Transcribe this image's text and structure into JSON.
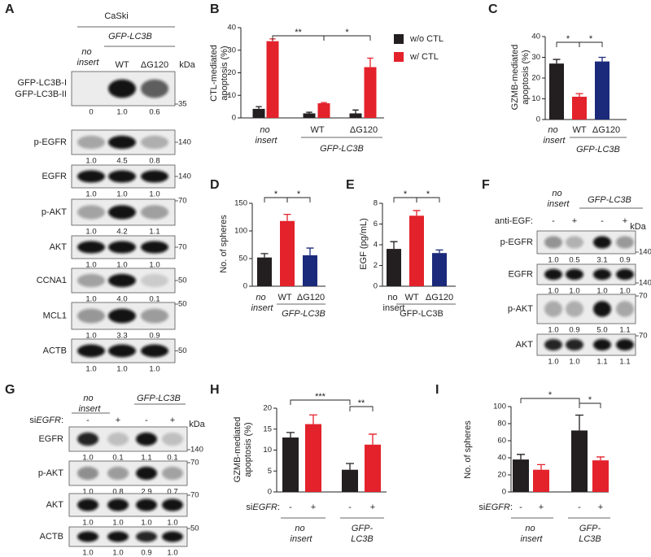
{
  "chart_data": [
    {
      "type": "bar",
      "panel": "B",
      "y_label": [
        "CTL-mediated",
        "apoptosis (%)"
      ],
      "categories": [
        "no insert",
        "WT",
        "ΔG120"
      ],
      "group_label": "GFP-LC3B",
      "series": [
        {
          "name": "w/o CTL",
          "color": "#231f20",
          "values": [
            4,
            2,
            2
          ],
          "errors": [
            1,
            0.5,
            1.5
          ]
        },
        {
          "name": "w/ CTL",
          "color": "#e3222b",
          "values": [
            34,
            6.5,
            22.5
          ],
          "errors": [
            1,
            0.3,
            4
          ]
        }
      ],
      "ylim": [
        0,
        40
      ],
      "yticks": [
        0,
        10,
        20,
        30,
        40
      ],
      "significance": [
        "**",
        "*"
      ]
    },
    {
      "type": "bar",
      "panel": "C",
      "y_label": [
        "GZMB-mediated",
        "apoptosis (%)"
      ],
      "categories": [
        "no insert",
        "WT",
        "ΔG120"
      ],
      "group_label": "GFP-LC3B",
      "values": [
        27,
        11,
        28
      ],
      "errors": [
        2,
        1.5,
        2
      ],
      "colors": [
        "#231f20",
        "#e3222b",
        "#1b2a7a"
      ],
      "ylim": [
        0,
        40
      ],
      "yticks": [
        0,
        10,
        20,
        30,
        40
      ],
      "significance": [
        "*",
        "*"
      ]
    },
    {
      "type": "bar",
      "panel": "D",
      "y_label": [
        "No. of spheres"
      ],
      "categories": [
        "no insert",
        "WT",
        "ΔG120"
      ],
      "group_label": "GFP-LC3B",
      "values": [
        52,
        118,
        56
      ],
      "errors": [
        7,
        12,
        13
      ],
      "colors": [
        "#231f20",
        "#e3222b",
        "#1b2a7a"
      ],
      "ylim": [
        0,
        150
      ],
      "yticks": [
        0,
        50,
        100,
        150
      ],
      "significance": [
        "*",
        "*"
      ]
    },
    {
      "type": "bar",
      "panel": "E",
      "y_label": [
        "EGF (pg/mL)"
      ],
      "categories": [
        "no insert",
        "WT",
        "ΔG120"
      ],
      "group_label": "GFP-LC3B",
      "values": [
        3.6,
        6.8,
        3.2
      ],
      "errors": [
        0.7,
        0.5,
        0.3
      ],
      "colors": [
        "#231f20",
        "#e3222b",
        "#1b2a7a"
      ],
      "ylim": [
        0,
        8
      ],
      "yticks": [
        0,
        2,
        4,
        6,
        8
      ],
      "significance": [
        "*",
        "*"
      ]
    },
    {
      "type": "bar",
      "panel": "H",
      "y_label": [
        "GZMB-mediated",
        "apoptosis (%)"
      ],
      "categories": [
        "no insert",
        "GFP-LC3B"
      ],
      "x_prefix": "siEGFR:",
      "signs": [
        "-",
        "+",
        "-",
        "+"
      ],
      "series": [
        {
          "color": "#231f20",
          "values": [
            13,
            5.3
          ],
          "errors": [
            1.2,
            1.5
          ]
        },
        {
          "color": "#e3222b",
          "values": [
            16.2,
            11.3
          ],
          "errors": [
            2.2,
            2.5
          ]
        }
      ],
      "ylim": [
        0,
        20
      ],
      "yticks": [
        0,
        5,
        10,
        15,
        20
      ],
      "significance": [
        "***",
        "**"
      ]
    },
    {
      "type": "bar",
      "panel": "I",
      "y_label": [
        "No. of spheres"
      ],
      "categories": [
        "no insert",
        "GFP-LC3B"
      ],
      "x_prefix": "siEGFR:",
      "signs": [
        "-",
        "+",
        "-",
        "+"
      ],
      "series": [
        {
          "color": "#231f20",
          "values": [
            38,
            72
          ],
          "errors": [
            6,
            18
          ]
        },
        {
          "color": "#e3222b",
          "values": [
            26,
            37
          ],
          "errors": [
            6,
            4
          ]
        }
      ],
      "ylim": [
        0,
        100
      ],
      "yticks": [
        0,
        20,
        40,
        60,
        80,
        100
      ],
      "significance": [
        "*",
        "*"
      ]
    }
  ],
  "blots": [
    {
      "panel": "A",
      "cell_line": "CaSki",
      "group_label": "GFP-LC3B",
      "lanes": [
        "no insert",
        "WT",
        "ΔG120"
      ],
      "unit": "kDa",
      "rows": [
        {
          "name": [
            "GFP-LC3B-I",
            "GFP-LC3B-II"
          ],
          "quant": [
            "0",
            "1.0",
            "0.6"
          ],
          "marker": "35"
        },
        {
          "name": "p-EGFR",
          "quant": [
            "1.0",
            "4.5",
            "0.8"
          ],
          "marker": "140"
        },
        {
          "name": "EGFR",
          "quant": [
            "1.0",
            "1.0",
            "1.0"
          ],
          "marker": "140"
        },
        {
          "name": "p-AKT",
          "quant": [
            "1.0",
            "4.2",
            "1.1"
          ],
          "marker": "70"
        },
        {
          "name": "AKT",
          "quant": [
            "1.0",
            "1.0",
            "1.0"
          ],
          "marker": "70"
        },
        {
          "name": "CCNA1",
          "quant": [
            "1.0",
            "4.0",
            "0.1"
          ],
          "marker": "50"
        },
        {
          "name": "MCL1",
          "quant": [
            "1.0",
            "3.3",
            "0.9"
          ],
          "marker": "50"
        },
        {
          "name": "ACTB",
          "quant": [
            "1.0",
            "1.0",
            "1.0"
          ],
          "marker": "50"
        }
      ]
    },
    {
      "panel": "F",
      "groups": [
        "no insert",
        "GFP-LC3B"
      ],
      "condition": "anti-EGF:",
      "signs": [
        "-",
        "+",
        "-",
        "+"
      ],
      "unit": "kDa",
      "rows": [
        {
          "name": "p-EGFR",
          "quant": [
            "1.0",
            "0.5",
            "3.1",
            "0.9"
          ],
          "marker": "140"
        },
        {
          "name": "EGFR",
          "quant": [
            "1.0",
            "1.0",
            "1.0",
            "1.0"
          ],
          "marker": "140"
        },
        {
          "name": "p-AKT",
          "quant": [
            "1.0",
            "0.9",
            "5.0",
            "1.1"
          ],
          "marker": "70"
        },
        {
          "name": "AKT",
          "quant": [
            "1.0",
            "1.0",
            "1.1",
            "1.1"
          ],
          "marker": "70"
        }
      ]
    },
    {
      "panel": "G",
      "groups": [
        "no insert",
        "GFP-LC3B"
      ],
      "condition": "siEGFR:",
      "signs": [
        "-",
        "+",
        "-",
        "+"
      ],
      "unit": "kDa",
      "rows": [
        {
          "name": "EGFR",
          "quant": [
            "1.0",
            "0.1",
            "1.1",
            "0.1"
          ],
          "marker": "140"
        },
        {
          "name": "p-AKT",
          "quant": [
            "1.0",
            "0.8",
            "2.9",
            "0.7"
          ],
          "marker": "70"
        },
        {
          "name": "AKT",
          "quant": [
            "1.0",
            "1.0",
            "1.0",
            "1.0"
          ],
          "marker": "70"
        },
        {
          "name": "ACTB",
          "quant": [
            "1.0",
            "1.0",
            "0.9",
            "1.0"
          ],
          "marker": "50"
        }
      ]
    }
  ]
}
